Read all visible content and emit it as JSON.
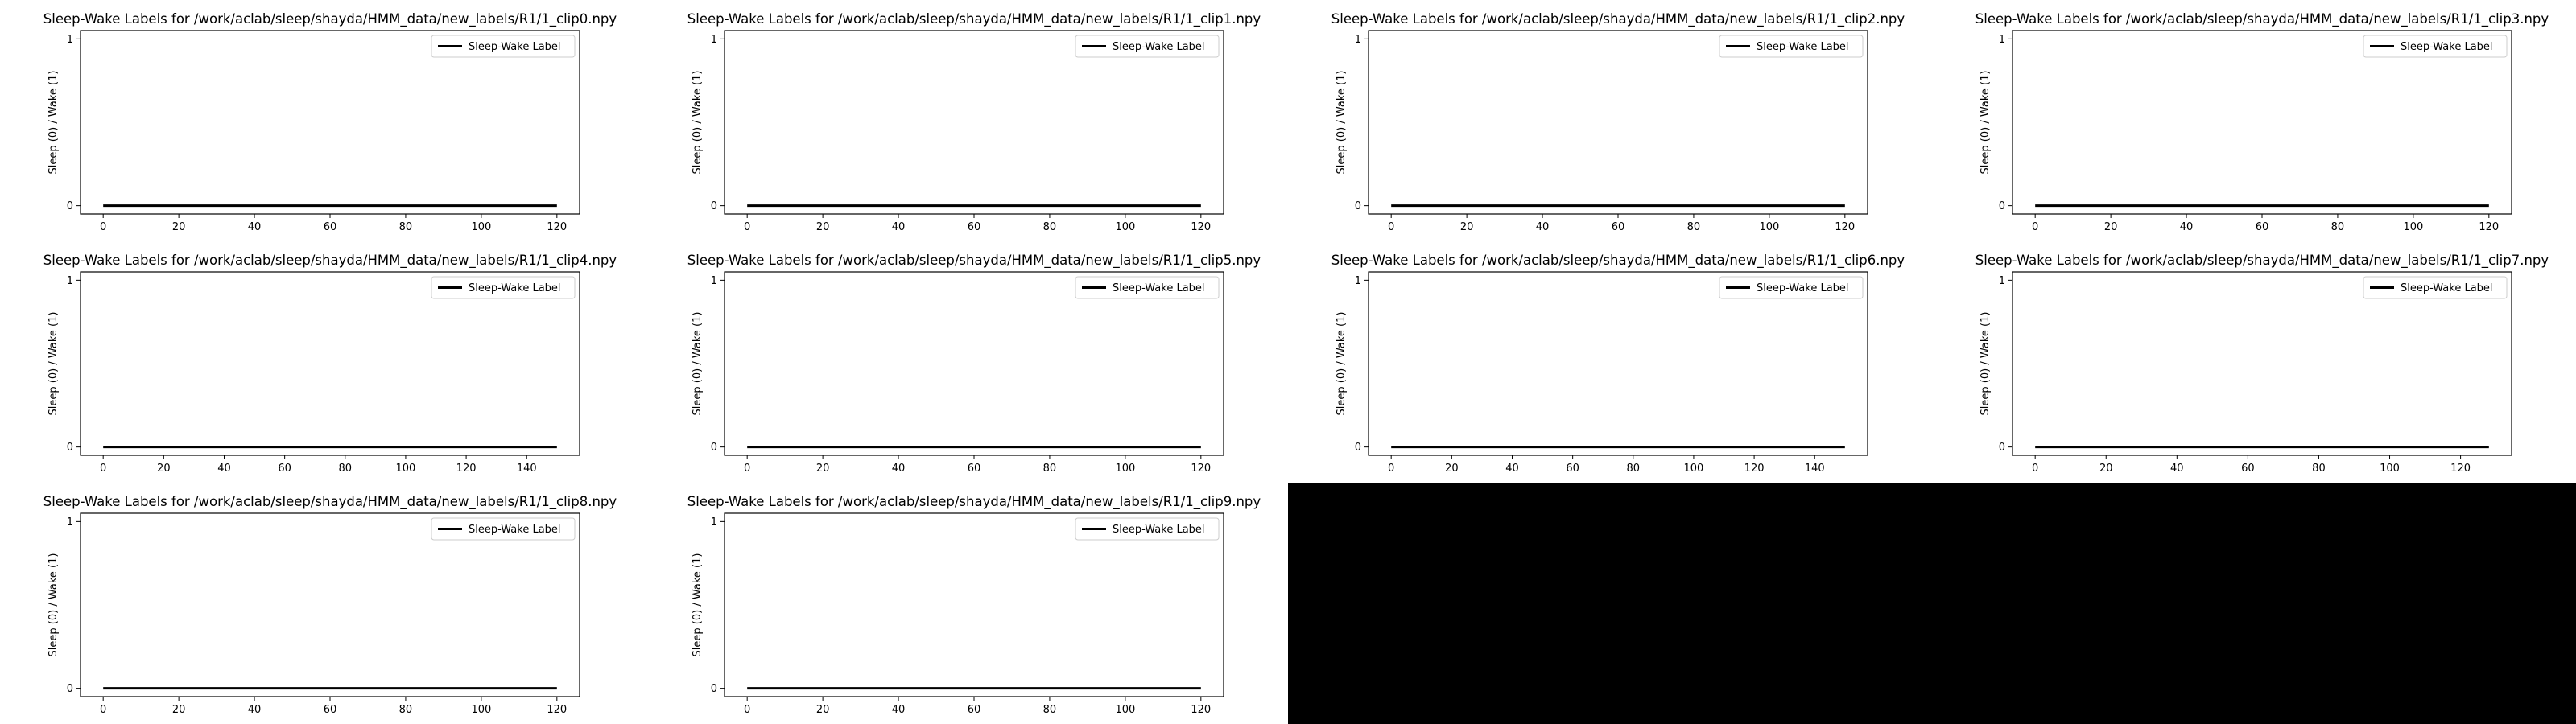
{
  "chart_data": [
    {
      "type": "line",
      "title": "Sleep-Wake Labels for /work/aclab/sleep/shayda/HMM_data/new_labels/R1/1_clip0.npy",
      "ylabel": "Sleep (0) / Wake (1)",
      "xlabel": "",
      "xlim": [
        -6,
        126
      ],
      "ylim": [
        -0.05,
        1.05
      ],
      "xticks": [
        0,
        20,
        40,
        60,
        80,
        100,
        120
      ],
      "yticks": [
        0,
        1
      ],
      "legend": "upper right",
      "series": [
        {
          "name": "Sleep-Wake Label",
          "x": [
            0,
            120
          ],
          "y": [
            0,
            0
          ]
        }
      ]
    },
    {
      "type": "line",
      "title": "Sleep-Wake Labels for /work/aclab/sleep/shayda/HMM_data/new_labels/R1/1_clip1.npy",
      "ylabel": "Sleep (0) / Wake (1)",
      "xlabel": "",
      "xlim": [
        -6,
        126
      ],
      "ylim": [
        -0.05,
        1.05
      ],
      "xticks": [
        0,
        20,
        40,
        60,
        80,
        100,
        120
      ],
      "yticks": [
        0,
        1
      ],
      "legend": "upper right",
      "series": [
        {
          "name": "Sleep-Wake Label",
          "x": [
            0,
            120
          ],
          "y": [
            0,
            0
          ]
        }
      ]
    },
    {
      "type": "line",
      "title": "Sleep-Wake Labels for /work/aclab/sleep/shayda/HMM_data/new_labels/R1/1_clip2.npy",
      "ylabel": "Sleep (0) / Wake (1)",
      "xlabel": "",
      "xlim": [
        -6,
        126
      ],
      "ylim": [
        -0.05,
        1.05
      ],
      "xticks": [
        0,
        20,
        40,
        60,
        80,
        100,
        120
      ],
      "yticks": [
        0,
        1
      ],
      "legend": "upper right",
      "series": [
        {
          "name": "Sleep-Wake Label",
          "x": [
            0,
            120
          ],
          "y": [
            0,
            0
          ]
        }
      ]
    },
    {
      "type": "line",
      "title": "Sleep-Wake Labels for /work/aclab/sleep/shayda/HMM_data/new_labels/R1/1_clip3.npy",
      "ylabel": "Sleep (0) / Wake (1)",
      "xlabel": "",
      "xlim": [
        -6,
        126
      ],
      "ylim": [
        -0.05,
        1.05
      ],
      "xticks": [
        0,
        20,
        40,
        60,
        80,
        100,
        120
      ],
      "yticks": [
        0,
        1
      ],
      "legend": "upper right",
      "series": [
        {
          "name": "Sleep-Wake Label",
          "x": [
            0,
            120
          ],
          "y": [
            0,
            0
          ]
        }
      ]
    },
    {
      "type": "line",
      "title": "Sleep-Wake Labels for /work/aclab/sleep/shayda/HMM_data/new_labels/R1/1_clip4.npy",
      "ylabel": "Sleep (0) / Wake (1)",
      "xlabel": "",
      "xlim": [
        -7.5,
        157.5
      ],
      "ylim": [
        -0.05,
        1.05
      ],
      "xticks": [
        0,
        20,
        40,
        60,
        80,
        100,
        120,
        140
      ],
      "yticks": [
        0,
        1
      ],
      "legend": "upper right",
      "series": [
        {
          "name": "Sleep-Wake Label",
          "x": [
            0,
            150
          ],
          "y": [
            0,
            0
          ]
        }
      ]
    },
    {
      "type": "line",
      "title": "Sleep-Wake Labels for /work/aclab/sleep/shayda/HMM_data/new_labels/R1/1_clip5.npy",
      "ylabel": "Sleep (0) / Wake (1)",
      "xlabel": "",
      "xlim": [
        -6,
        126
      ],
      "ylim": [
        -0.05,
        1.05
      ],
      "xticks": [
        0,
        20,
        40,
        60,
        80,
        100,
        120
      ],
      "yticks": [
        0,
        1
      ],
      "legend": "upper right",
      "series": [
        {
          "name": "Sleep-Wake Label",
          "x": [
            0,
            120
          ],
          "y": [
            0,
            0
          ]
        }
      ]
    },
    {
      "type": "line",
      "title": "Sleep-Wake Labels for /work/aclab/sleep/shayda/HMM_data/new_labels/R1/1_clip6.npy",
      "ylabel": "Sleep (0) / Wake (1)",
      "xlabel": "",
      "xlim": [
        -7.5,
        157.5
      ],
      "ylim": [
        -0.05,
        1.05
      ],
      "xticks": [
        0,
        20,
        40,
        60,
        80,
        100,
        120,
        140
      ],
      "yticks": [
        0,
        1
      ],
      "legend": "upper right",
      "series": [
        {
          "name": "Sleep-Wake Label",
          "x": [
            0,
            150
          ],
          "y": [
            0,
            0
          ]
        }
      ]
    },
    {
      "type": "line",
      "title": "Sleep-Wake Labels for /work/aclab/sleep/shayda/HMM_data/new_labels/R1/1_clip7.npy",
      "ylabel": "Sleep (0) / Wake (1)",
      "xlabel": "",
      "xlim": [
        -6.4,
        134.4
      ],
      "ylim": [
        -0.05,
        1.05
      ],
      "xticks": [
        0,
        20,
        40,
        60,
        80,
        100,
        120
      ],
      "yticks": [
        0,
        1
      ],
      "legend": "upper right",
      "series": [
        {
          "name": "Sleep-Wake Label",
          "x": [
            0,
            128
          ],
          "y": [
            0,
            0
          ]
        }
      ]
    },
    {
      "type": "line",
      "title": "Sleep-Wake Labels for /work/aclab/sleep/shayda/HMM_data/new_labels/R1/1_clip8.npy",
      "ylabel": "Sleep (0) / Wake (1)",
      "xlabel": "",
      "xlim": [
        -6,
        126
      ],
      "ylim": [
        -0.05,
        1.05
      ],
      "xticks": [
        0,
        20,
        40,
        60,
        80,
        100,
        120
      ],
      "yticks": [
        0,
        1
      ],
      "legend": "upper right",
      "series": [
        {
          "name": "Sleep-Wake Label",
          "x": [
            0,
            120
          ],
          "y": [
            0,
            0
          ]
        }
      ]
    },
    {
      "type": "line",
      "title": "Sleep-Wake Labels for /work/aclab/sleep/shayda/HMM_data/new_labels/R1/1_clip9.npy",
      "ylabel": "Sleep (0) / Wake (1)",
      "xlabel": "",
      "xlim": [
        -6,
        126
      ],
      "ylim": [
        -0.05,
        1.05
      ],
      "xticks": [
        0,
        20,
        40,
        60,
        80,
        100,
        120
      ],
      "yticks": [
        0,
        1
      ],
      "legend": "upper right",
      "series": [
        {
          "name": "Sleep-Wake Label",
          "x": [
            0,
            120
          ],
          "y": [
            0,
            0
          ]
        }
      ]
    }
  ],
  "colors": {
    "line": "#000000",
    "axes": "#000000",
    "text": "#000000",
    "empty_area": "#000000"
  }
}
